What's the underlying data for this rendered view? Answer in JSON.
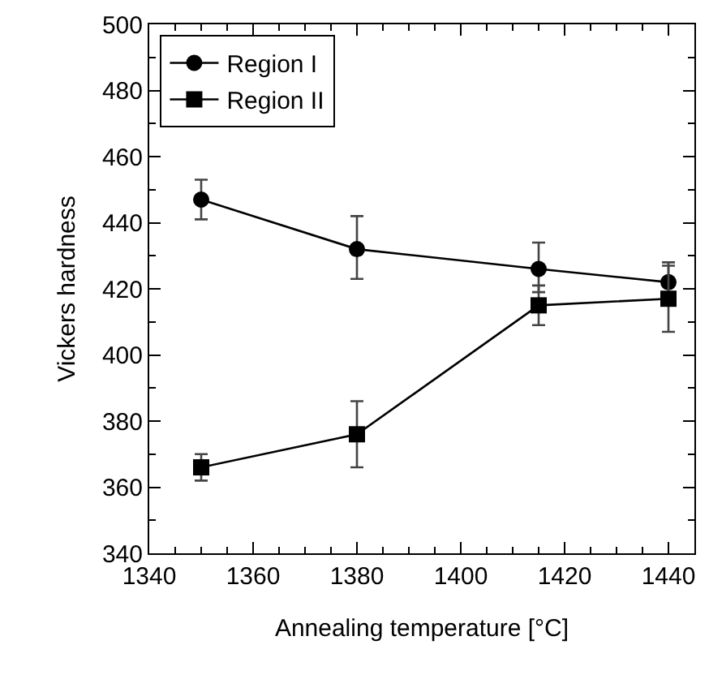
{
  "chart_data": {
    "type": "line",
    "xlabel": "Annealing temperature [°C]",
    "ylabel": "Vickers hardness",
    "x": [
      1350,
      1380,
      1415,
      1440
    ],
    "series": [
      {
        "name": "Region I",
        "color": "#000000",
        "marker": "circle",
        "values": [
          447,
          432,
          426,
          422
        ],
        "errors": [
          [
            441,
            453
          ],
          [
            423,
            442
          ],
          [
            419,
            434
          ],
          [
            422,
            428
          ]
        ]
      },
      {
        "name": "Region II",
        "color": "#000000",
        "marker": "square",
        "values": [
          366,
          376,
          415,
          417
        ],
        "errors": [
          [
            362,
            370
          ],
          [
            366,
            386
          ],
          [
            409,
            421
          ],
          [
            407,
            427
          ]
        ]
      }
    ],
    "xlim": [
      1340,
      1445
    ],
    "xticks": [
      1340,
      1360,
      1380,
      1400,
      1420,
      1440
    ],
    "ylim": [
      340,
      500
    ],
    "yticks": [
      340,
      360,
      380,
      400,
      420,
      440,
      460,
      480,
      500
    ],
    "grid": false,
    "legend": "top left",
    "line_style": "solid"
  }
}
